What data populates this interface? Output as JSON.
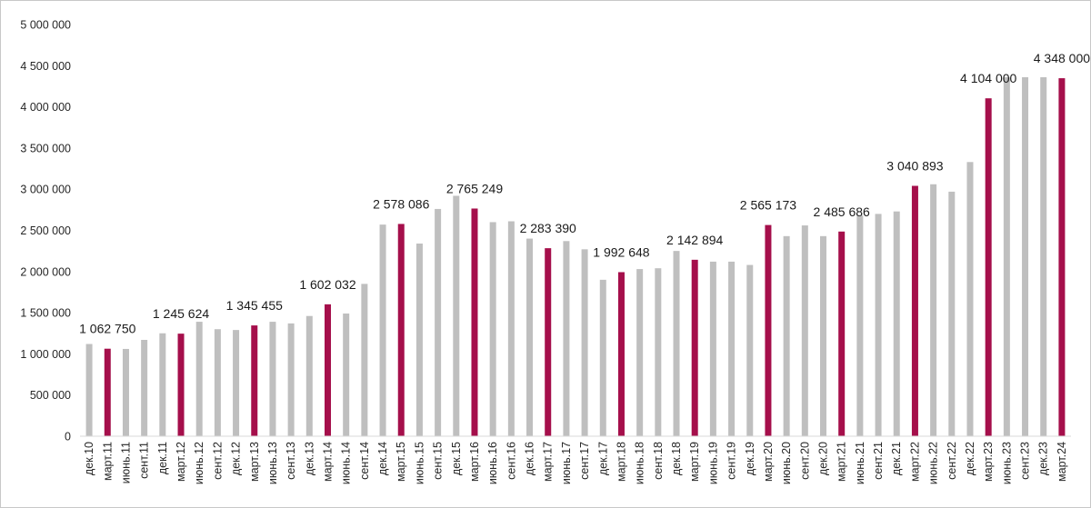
{
  "chart_data": {
    "type": "bar",
    "title": "",
    "xlabel": "",
    "ylabel": "",
    "ylim": [
      0,
      5000000
    ],
    "yticks": [
      0,
      500000,
      1000000,
      1500000,
      2000000,
      2500000,
      3000000,
      3500000,
      4000000,
      4500000,
      5000000
    ],
    "ytick_labels": [
      "0",
      "500 000",
      "1 000 000",
      "1 500 000",
      "2 000 000",
      "2 500 000",
      "3 000 000",
      "3 500 000",
      "4 000 000",
      "4 500 000",
      "5 000 000"
    ],
    "grid": false,
    "colors": {
      "normal": "#bfbfbf",
      "highlight": "#a50f4b",
      "axis": "#d9d9d9"
    },
    "categories": [
      "дек.10",
      "март.11",
      "июнь.11",
      "сент.11",
      "дек.11",
      "март.12",
      "июнь.12",
      "сент.12",
      "дек.12",
      "март.13",
      "июнь.13",
      "сент.13",
      "дек.13",
      "март.14",
      "июнь.14",
      "сент.14",
      "дек.14",
      "март.15",
      "июнь.15",
      "сент.15",
      "дек.15",
      "март.16",
      "июнь.16",
      "сент.16",
      "дек.16",
      "март.17",
      "июнь.17",
      "сент.17",
      "дек.17",
      "март.18",
      "июнь.18",
      "сент.18",
      "дек.18",
      "март.19",
      "июнь.19",
      "сент.19",
      "дек.19",
      "март.20",
      "июнь.20",
      "сент.20",
      "дек.20",
      "март.21",
      "июнь.21",
      "сент.21",
      "дек.21",
      "март.22",
      "июнь.22",
      "сент.22",
      "дек.22",
      "март.23",
      "июнь.23",
      "сент.23",
      "дек.23",
      "март.24"
    ],
    "values": [
      1120000,
      1062750,
      1060000,
      1170000,
      1250000,
      1245624,
      1390000,
      1300000,
      1290000,
      1345455,
      1390000,
      1370000,
      1460000,
      1602032,
      1490000,
      1850000,
      2570000,
      2578086,
      2340000,
      2760000,
      2920000,
      2765249,
      2600000,
      2610000,
      2400000,
      2283390,
      2370000,
      2270000,
      1900000,
      1992648,
      2030000,
      2040000,
      2250000,
      2142894,
      2120000,
      2120000,
      2080000,
      2565173,
      2430000,
      2560000,
      2430000,
      2485686,
      2680000,
      2700000,
      2730000,
      3040893,
      3060000,
      2970000,
      3330000,
      4104000,
      4360000,
      4360000,
      4360000,
      4348000
    ],
    "highlighted": [
      1,
      5,
      9,
      13,
      17,
      21,
      25,
      29,
      33,
      37,
      41,
      45,
      49,
      53
    ],
    "data_labels": [
      {
        "index": 1,
        "text": "1 062 750"
      },
      {
        "index": 5,
        "text": "1 245 624"
      },
      {
        "index": 9,
        "text": "1 345 455"
      },
      {
        "index": 13,
        "text": "1 602 032"
      },
      {
        "index": 17,
        "text": "2 578 086"
      },
      {
        "index": 21,
        "text": "2 765 249"
      },
      {
        "index": 25,
        "text": "2 283 390"
      },
      {
        "index": 29,
        "text": "1 992 648"
      },
      {
        "index": 33,
        "text": "2 142 894"
      },
      {
        "index": 37,
        "text": "2 565 173"
      },
      {
        "index": 41,
        "text": "2 485 686"
      },
      {
        "index": 45,
        "text": "3 040 893"
      },
      {
        "index": 49,
        "text": "4 104 000"
      },
      {
        "index": 53,
        "text": "4 348 000"
      }
    ]
  }
}
